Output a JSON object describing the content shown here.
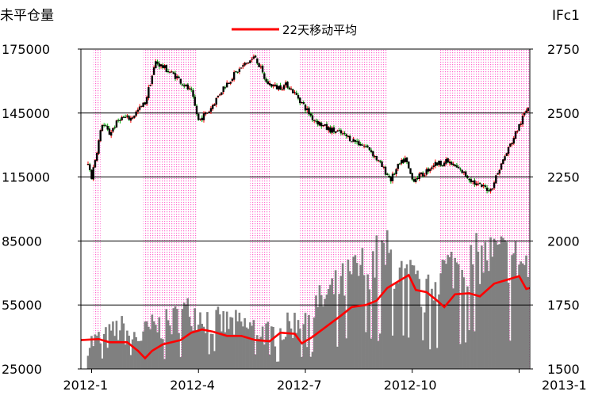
{
  "chart_data": {
    "type": "bar",
    "left_axis_title": "未平仓量",
    "right_axis_title": "IFc1",
    "legend": {
      "label": "22天移动平均",
      "color": "#ff0000",
      "placement": "top-center"
    },
    "left_axis": {
      "ylim": [
        25000,
        175000
      ],
      "ticks": [
        "175000",
        "145000",
        "115000",
        "85000",
        "55000",
        "25000"
      ],
      "tick_values": [
        175000,
        145000,
        115000,
        85000,
        55000,
        25000
      ]
    },
    "right_axis": {
      "ylim": [
        1500,
        2750
      ],
      "ticks": [
        "2750",
        "2500",
        "2250",
        "2000",
        "1750",
        "1500"
      ],
      "tick_values": [
        2750,
        2500,
        2250,
        2000,
        1750,
        1500
      ]
    },
    "x_axis": {
      "labels": [
        "2012-1",
        "2012-4",
        "2012-7",
        "2012-10",
        "2013-1"
      ],
      "label_months": [
        0,
        3,
        6,
        9,
        12
      ],
      "range_months": [
        -0.3,
        12.3
      ]
    },
    "grid": {
      "horizontal": true,
      "color": "#000000"
    },
    "shaded_bands_months": [
      [
        0.05,
        0.25
      ],
      [
        1.45,
        2.95
      ],
      [
        4.45,
        5.0
      ],
      [
        5.85,
        8.3
      ],
      [
        9.75,
        12.3
      ]
    ],
    "colors": {
      "up_candle": "#ff0000",
      "down_candle": "#00b000",
      "candle_body": "#000000",
      "volume_bar": "#808080",
      "ma_line": "#ff0000",
      "band_fill": "#ff66cc"
    },
    "price_anchors": [
      [
        -0.1,
        2300
      ],
      [
        0.0,
        2250
      ],
      [
        0.3,
        2460
      ],
      [
        0.5,
        2420
      ],
      [
        0.8,
        2480
      ],
      [
        1.1,
        2480
      ],
      [
        1.5,
        2540
      ],
      [
        1.8,
        2700
      ],
      [
        2.1,
        2670
      ],
      [
        2.4,
        2640
      ],
      [
        2.8,
        2580
      ],
      [
        3.0,
        2470
      ],
      [
        3.3,
        2510
      ],
      [
        3.7,
        2600
      ],
      [
        4.0,
        2650
      ],
      [
        4.3,
        2690
      ],
      [
        4.6,
        2720
      ],
      [
        4.9,
        2620
      ],
      [
        5.2,
        2600
      ],
      [
        5.5,
        2610
      ],
      [
        5.8,
        2560
      ],
      [
        6.2,
        2480
      ],
      [
        6.6,
        2440
      ],
      [
        7.0,
        2420
      ],
      [
        7.4,
        2390
      ],
      [
        7.8,
        2360
      ],
      [
        8.1,
        2300
      ],
      [
        8.4,
        2240
      ],
      [
        8.6,
        2290
      ],
      [
        8.8,
        2320
      ],
      [
        9.0,
        2240
      ],
      [
        9.3,
        2260
      ],
      [
        9.6,
        2300
      ],
      [
        10.0,
        2310
      ],
      [
        10.4,
        2270
      ],
      [
        10.8,
        2220
      ],
      [
        11.2,
        2200
      ],
      [
        11.5,
        2300
      ],
      [
        11.8,
        2390
      ],
      [
        12.1,
        2480
      ],
      [
        12.3,
        2540
      ]
    ],
    "open_interest_anchors": [
      [
        -0.1,
        38000
      ],
      [
        0.4,
        40000
      ],
      [
        0.8,
        45000
      ],
      [
        1.3,
        40000
      ],
      [
        1.7,
        45000
      ],
      [
        2.2,
        47000
      ],
      [
        2.6,
        53000
      ],
      [
        3.0,
        52000
      ],
      [
        3.4,
        48000
      ],
      [
        3.8,
        47000
      ],
      [
        4.2,
        46000
      ],
      [
        4.6,
        45000
      ],
      [
        5.0,
        42000
      ],
      [
        5.4,
        44000
      ],
      [
        5.9,
        50000
      ],
      [
        6.4,
        57000
      ],
      [
        6.9,
        64000
      ],
      [
        7.3,
        70000
      ],
      [
        7.7,
        75000
      ],
      [
        8.0,
        78000
      ],
      [
        8.3,
        80000
      ],
      [
        8.7,
        70000
      ],
      [
        9.0,
        68000
      ],
      [
        9.4,
        60000
      ],
      [
        9.8,
        72000
      ],
      [
        10.2,
        75000
      ],
      [
        10.6,
        78000
      ],
      [
        11.0,
        78000
      ],
      [
        11.4,
        80000
      ],
      [
        11.8,
        78000
      ],
      [
        12.3,
        74000
      ]
    ],
    "moving_average": [
      [
        -0.3,
        38500
      ],
      [
        0.2,
        39000
      ],
      [
        0.5,
        37500
      ],
      [
        1.0,
        37500
      ],
      [
        1.3,
        33500
      ],
      [
        1.5,
        30000
      ],
      [
        1.7,
        33500
      ],
      [
        2.0,
        36500
      ],
      [
        2.5,
        38500
      ],
      [
        2.8,
        42000
      ],
      [
        3.1,
        43500
      ],
      [
        3.4,
        42500
      ],
      [
        3.8,
        40500
      ],
      [
        4.2,
        40500
      ],
      [
        4.6,
        38500
      ],
      [
        5.0,
        38000
      ],
      [
        5.3,
        42000
      ],
      [
        5.7,
        41500
      ],
      [
        5.9,
        37000
      ],
      [
        6.2,
        40000
      ],
      [
        6.6,
        45000
      ],
      [
        7.0,
        50000
      ],
      [
        7.3,
        54000
      ],
      [
        7.7,
        55000
      ],
      [
        8.0,
        57000
      ],
      [
        8.3,
        63000
      ],
      [
        8.6,
        66000
      ],
      [
        8.9,
        69000
      ],
      [
        9.1,
        62000
      ],
      [
        9.4,
        61000
      ],
      [
        9.7,
        57000
      ],
      [
        9.9,
        54000
      ],
      [
        10.2,
        60000
      ],
      [
        10.6,
        60500
      ],
      [
        10.9,
        59000
      ],
      [
        11.3,
        65000
      ],
      [
        11.6,
        66500
      ],
      [
        12.0,
        68500
      ],
      [
        12.2,
        62500
      ],
      [
        12.3,
        63000
      ]
    ]
  }
}
